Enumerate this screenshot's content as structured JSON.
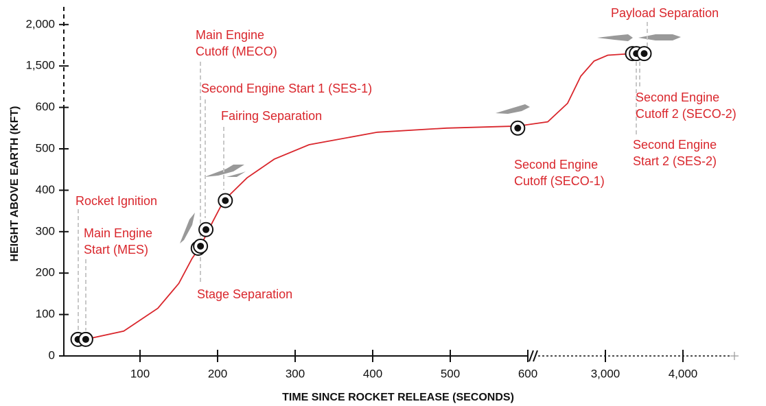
{
  "chart_data": {
    "type": "line",
    "x_label": "TIME SINCE ROCKET RELEASE (SECONDS)",
    "y_label": "HEIGHT ABOVE EARTH (KFT)",
    "xlim": [
      0,
      4600
    ],
    "xticks": [
      100,
      200,
      300,
      400,
      500,
      600,
      {
        "value": 3000,
        "label": "3,000"
      },
      {
        "value": 4000,
        "label": "4,000"
      }
    ],
    "ylim": [
      0,
      2200
    ],
    "yticks": [
      0,
      100,
      200,
      300,
      400,
      500,
      600,
      {
        "value": 1500,
        "label": "1,500"
      },
      {
        "value": 2000,
        "label": "2,000"
      }
    ],
    "series": [
      {
        "color": "#d9262c",
        "x": [
          12,
          30,
          79,
          123,
          150,
          167,
          178,
          194,
          208,
          238,
          273,
          318,
          406,
          495,
          587,
          1215,
          1830,
          2240,
          2650,
          3030,
          3350,
          3570
        ],
        "values": [
          40,
          40,
          60,
          115,
          175,
          235,
          265,
          325,
          375,
          430,
          475,
          510,
          540,
          550,
          555,
          565,
          690,
          1280,
          1560,
          1630,
          1650,
          1650
        ]
      }
    ],
    "annotations": [
      {
        "label": [
          "Rocket Ignition"
        ],
        "x": 20,
        "y": 40
      },
      {
        "label": [
          "Main Engine",
          "Start (MES)"
        ],
        "x": 30,
        "y": 40
      },
      {
        "label": [
          "Main Engine",
          "Cutoff (MECO)"
        ],
        "x": 175,
        "y": 260
      },
      {
        "label": [
          "Stage Separation"
        ],
        "x": 178,
        "y": 265
      },
      {
        "label": [
          "Second Engine Start 1 (SES-1)"
        ],
        "x": 185,
        "y": 305
      },
      {
        "label": [
          "Fairing Separation"
        ],
        "x": 210,
        "y": 375
      },
      {
        "label": [
          "Second Engine",
          "Cutoff (SECO-1)"
        ],
        "x": 587,
        "y": 550
      },
      {
        "label": [
          "Second Engine",
          "Start 2 (SES-2)"
        ],
        "x": 3350,
        "y": 1650
      },
      {
        "label": [
          "Second Engine",
          "Cutoff 2 (SECO-2)"
        ],
        "x": 3400,
        "y": 1650
      },
      {
        "label": [
          "Payload Separation"
        ],
        "x": 3500,
        "y": 1650
      }
    ]
  }
}
